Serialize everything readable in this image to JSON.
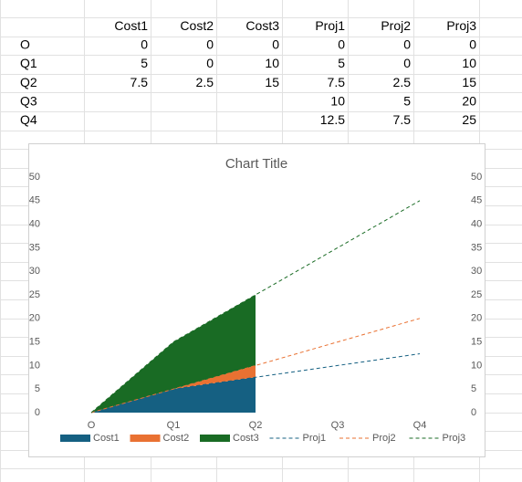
{
  "table": {
    "header": [
      null,
      "Cost1",
      "Cost2",
      "Cost3",
      "Proj1",
      "Proj2",
      "Proj3"
    ],
    "rows": [
      [
        "O",
        0,
        0,
        0,
        0,
        0,
        0
      ],
      [
        "Q1",
        5,
        0,
        10,
        5,
        0,
        10
      ],
      [
        "Q2",
        7.5,
        2.5,
        15,
        7.5,
        2.5,
        15
      ],
      [
        "Q3",
        null,
        null,
        null,
        10,
        5,
        20
      ],
      [
        "Q4",
        null,
        null,
        null,
        12.5,
        7.5,
        25
      ]
    ]
  },
  "chart_data": {
    "type": "area",
    "title": "Chart Title",
    "stacked": true,
    "categories": [
      "O",
      "Q1",
      "Q2",
      "Q3",
      "Q4"
    ],
    "ylim": [
      0,
      50
    ],
    "yticks": [
      0,
      5,
      10,
      15,
      20,
      25,
      30,
      35,
      40,
      45,
      50
    ],
    "y2lim": [
      0,
      50
    ],
    "y2ticks": [
      0,
      5,
      10,
      15,
      20,
      25,
      30,
      35,
      40,
      45,
      50
    ],
    "legend": "bottom",
    "series": [
      {
        "name": "Cost1",
        "kind": "area",
        "color": "#156082",
        "values": [
          0,
          5,
          7.5,
          null,
          null
        ]
      },
      {
        "name": "Cost2",
        "kind": "area",
        "color": "#e97132",
        "values": [
          0,
          0,
          2.5,
          null,
          null
        ]
      },
      {
        "name": "Cost3",
        "kind": "area",
        "color": "#196b24",
        "values": [
          0,
          10,
          15,
          null,
          null
        ]
      },
      {
        "name": "Proj1",
        "kind": "line",
        "dashed": true,
        "axis": "y2",
        "color": "#156082",
        "values": [
          0,
          5,
          7.5,
          10,
          12.5
        ]
      },
      {
        "name": "Proj2",
        "kind": "line",
        "dashed": true,
        "axis": "y2",
        "color": "#e97132",
        "values": [
          0,
          0,
          2.5,
          5,
          7.5
        ]
      },
      {
        "name": "Proj3",
        "kind": "line",
        "dashed": true,
        "axis": "y2",
        "color": "#196b24",
        "values": [
          0,
          10,
          15,
          20,
          25
        ]
      }
    ]
  }
}
